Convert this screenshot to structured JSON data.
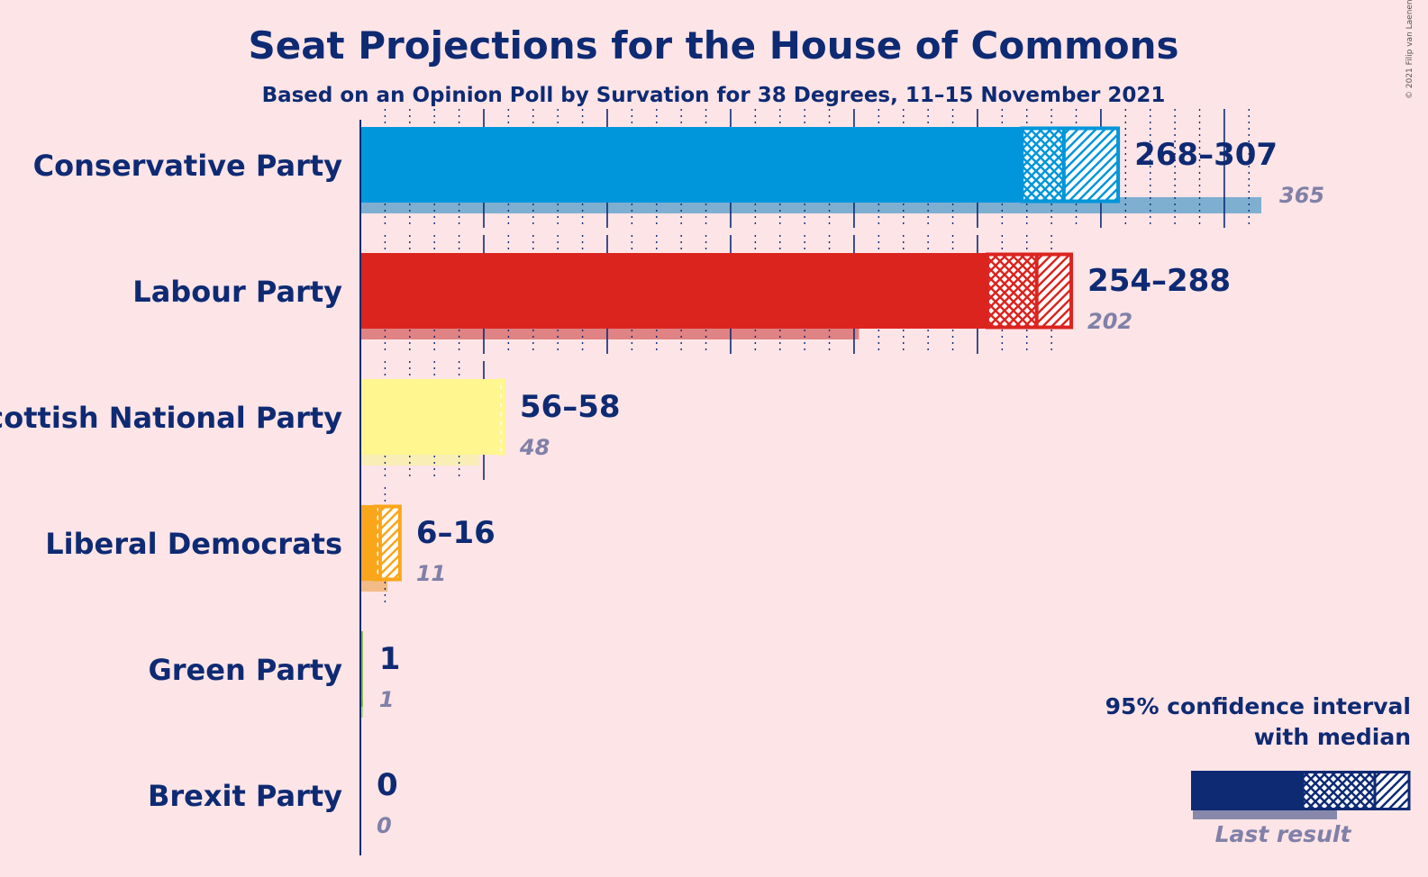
{
  "chart_data": {
    "type": "bar",
    "title": "Seat Projections for the House of Commons",
    "subtitle": "Based on an Opinion Poll by Survation for 38 Degrees, 11–15 November 2021",
    "copyright": "© 2021 Filip van Laenen",
    "scale_max_seats": 365,
    "parties": [
      {
        "name": "Conservative Party",
        "range_label": "268–307",
        "low": 268,
        "median": 285,
        "high": 307,
        "last_result": 365,
        "last_label": "365",
        "color": "#0096db",
        "last_color": "#7fafd0"
      },
      {
        "name": "Labour Party",
        "range_label": "254–288",
        "low": 254,
        "median": 274,
        "high": 288,
        "last_result": 202,
        "last_label": "202",
        "color": "#dc241f",
        "last_color": "#e08384"
      },
      {
        "name": "Scottish National Party",
        "range_label": "56–58",
        "low": 56,
        "median": 58,
        "high": 58,
        "last_result": 48,
        "last_label": "48",
        "color": "#fff68f",
        "last_color": "#f9eeb5"
      },
      {
        "name": "Liberal Democrats",
        "range_label": "6–16",
        "low": 6,
        "median": 8,
        "high": 16,
        "last_result": 11,
        "last_label": "11",
        "color": "#faa61a",
        "last_color": "#f3bb86"
      },
      {
        "name": "Green Party",
        "range_label": "1",
        "low": 1,
        "median": 1,
        "high": 1,
        "last_result": 1,
        "last_label": "1",
        "color": "#78b82a",
        "last_color": "#b7d68f"
      },
      {
        "name": "Brexit Party",
        "range_label": "0",
        "low": 0,
        "median": 0,
        "high": 0,
        "last_result": 0,
        "last_label": "0",
        "color": "#12b6cf",
        "last_color": "#7fd5e3"
      }
    ]
  },
  "legend": {
    "line1": "95% confidence interval",
    "line2": "with median",
    "last_result": "Last result",
    "color": "#0e2a73",
    "last_color": "#8888aa"
  }
}
